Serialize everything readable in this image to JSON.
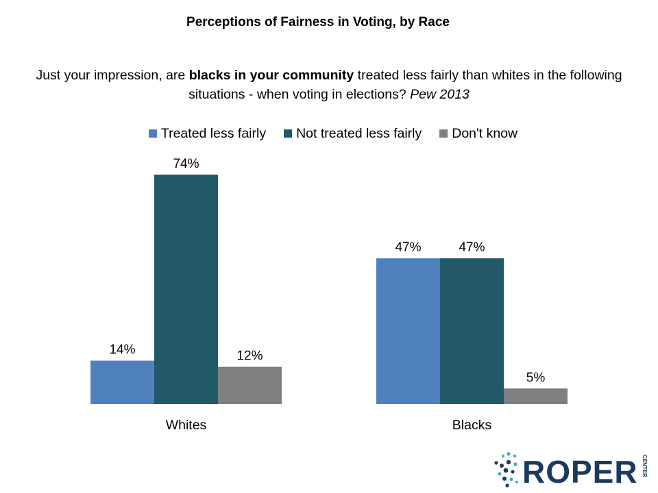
{
  "title": "Perceptions of Fairness in Voting, by Race",
  "question": {
    "part1": "Just your impression, are ",
    "bold": "blacks in your community",
    "part2": " treated less fairly than whites in the following situations  - when voting in elections? ",
    "source": "Pew  2013"
  },
  "chart_data": {
    "type": "bar",
    "title": "Perceptions of Fairness in Voting, by Race",
    "categories": [
      "Whites",
      "Blacks"
    ],
    "series": [
      {
        "name": "Treated less fairly",
        "values": [
          14,
          47
        ],
        "color": "#4F81BD"
      },
      {
        "name": "Not treated less fairly",
        "values": [
          74,
          47
        ],
        "color": "#215968"
      },
      {
        "name": "Don't know",
        "values": [
          12,
          5
        ],
        "color": "#7F7F7F"
      }
    ],
    "value_suffix": "%",
    "ylim": [
      0,
      74
    ],
    "grid": false,
    "legend": "top"
  },
  "logo": {
    "text": "ROPER",
    "subtext": "CENTER",
    "color": "#1B3A5C",
    "accent": "#3BA9B9"
  }
}
